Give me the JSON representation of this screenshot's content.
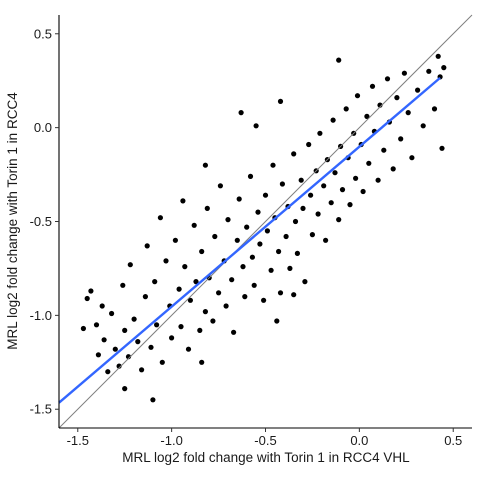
{
  "chart_data": {
    "type": "scatter",
    "title": "",
    "xlabel": "MRL log2 fold change with Torin 1 in RCC4 VHL",
    "ylabel": "MRL log2 fold change with Torin 1 in RCC4",
    "xlim": [
      -1.6,
      0.6
    ],
    "ylim": [
      -1.6,
      0.6
    ],
    "x_ticks": [
      -1.5,
      -1.0,
      -0.5,
      0.0,
      0.5
    ],
    "x_tick_labels": [
      "-1.5",
      "-1.0",
      "-0.5",
      "0.0",
      "0.5"
    ],
    "y_ticks": [
      -1.5,
      -1.0,
      -0.5,
      0.0,
      0.5
    ],
    "y_tick_labels": [
      "-1.5",
      "-1.0",
      "-0.5",
      "0.0",
      "0.5"
    ],
    "grid": false,
    "legend": "none",
    "point_color": "#000000",
    "identity_line": {
      "slope": 1,
      "intercept": 0,
      "color": "#7f7f7f"
    },
    "fit_line": {
      "x": [
        -1.6,
        0.43
      ],
      "y": [
        -1.465,
        0.265
      ],
      "color": "#3366ff"
    },
    "points": [
      [
        -1.47,
        -1.07
      ],
      [
        -1.45,
        -0.91
      ],
      [
        -1.43,
        -0.87
      ],
      [
        -1.4,
        -1.05
      ],
      [
        -1.39,
        -1.21
      ],
      [
        -1.37,
        -0.95
      ],
      [
        -1.36,
        -1.13
      ],
      [
        -1.34,
        -1.3
      ],
      [
        -1.32,
        -0.99
      ],
      [
        -1.3,
        -1.18
      ],
      [
        -1.28,
        -1.27
      ],
      [
        -1.26,
        -0.84
      ],
      [
        -1.25,
        -1.08
      ],
      [
        -1.23,
        -1.22
      ],
      [
        -1.22,
        -0.73
      ],
      [
        -1.2,
        -1.02
      ],
      [
        -1.18,
        -1.14
      ],
      [
        -1.16,
        -1.29
      ],
      [
        -1.14,
        -0.9
      ],
      [
        -1.13,
        -0.63
      ],
      [
        -1.11,
        -1.17
      ],
      [
        -1.09,
        -0.82
      ],
      [
        -1.08,
        -1.05
      ],
      [
        -1.06,
        -0.48
      ],
      [
        -1.05,
        -1.25
      ],
      [
        -1.03,
        -0.71
      ],
      [
        -1.01,
        -0.95
      ],
      [
        -1.0,
        -1.12
      ],
      [
        -0.98,
        -0.6
      ],
      [
        -0.96,
        -0.86
      ],
      [
        -0.95,
        -1.06
      ],
      [
        -0.94,
        -0.39
      ],
      [
        -0.93,
        -0.74
      ],
      [
        -0.91,
        -1.18
      ],
      [
        -0.9,
        -0.92
      ],
      [
        -0.88,
        -0.52
      ],
      [
        -0.87,
        -0.82
      ],
      [
        -0.85,
        -1.08
      ],
      [
        -0.84,
        -0.66
      ],
      [
        -0.82,
        -0.98
      ],
      [
        -0.81,
        -0.43
      ],
      [
        -0.8,
        -0.8
      ],
      [
        -0.78,
        -1.03
      ],
      [
        -0.77,
        -0.58
      ],
      [
        -0.75,
        -0.88
      ],
      [
        -0.74,
        -0.31
      ],
      [
        -0.72,
        -0.71
      ],
      [
        -0.71,
        -0.95
      ],
      [
        -0.7,
        -0.49
      ],
      [
        -0.68,
        -0.81
      ],
      [
        -0.67,
        -1.09
      ],
      [
        -0.65,
        -0.6
      ],
      [
        -0.64,
        -0.38
      ],
      [
        -0.62,
        -0.74
      ],
      [
        -0.61,
        -0.9
      ],
      [
        -0.6,
        -0.53
      ],
      [
        -0.58,
        -0.26
      ],
      [
        -0.57,
        -0.69
      ],
      [
        -0.56,
        -0.84
      ],
      [
        -0.54,
        -0.45
      ],
      [
        -0.53,
        -0.62
      ],
      [
        -0.51,
        -0.92
      ],
      [
        -0.5,
        -0.36
      ],
      [
        -0.49,
        -0.55
      ],
      [
        -0.47,
        -0.76
      ],
      [
        -0.46,
        -0.2
      ],
      [
        -0.45,
        -0.48
      ],
      [
        -0.43,
        -0.66
      ],
      [
        -0.42,
        -0.88
      ],
      [
        -0.41,
        -0.3
      ],
      [
        -0.39,
        -0.58
      ],
      [
        -0.38,
        -0.42
      ],
      [
        -0.37,
        -0.75
      ],
      [
        -0.35,
        -0.14
      ],
      [
        -0.34,
        -0.5
      ],
      [
        -0.33,
        -0.67
      ],
      [
        -0.31,
        -0.28
      ],
      [
        -0.3,
        -0.43
      ],
      [
        -0.29,
        -0.82
      ],
      [
        -0.27,
        -0.09
      ],
      [
        -0.26,
        -0.36
      ],
      [
        -0.25,
        -0.57
      ],
      [
        -0.23,
        -0.23
      ],
      [
        -0.22,
        -0.46
      ],
      [
        -0.21,
        -0.03
      ],
      [
        -0.19,
        -0.31
      ],
      [
        -0.18,
        -0.6
      ],
      [
        -0.17,
        -0.17
      ],
      [
        -0.15,
        -0.4
      ],
      [
        -0.14,
        0.04
      ],
      [
        -0.13,
        -0.24
      ],
      [
        -0.11,
        -0.49
      ],
      [
        -0.1,
        -0.1
      ],
      [
        -0.09,
        -0.33
      ],
      [
        -0.07,
        0.1
      ],
      [
        -0.06,
        -0.16
      ],
      [
        -0.05,
        -0.41
      ],
      [
        -0.03,
        -0.03
      ],
      [
        -0.02,
        -0.27
      ],
      [
        -0.01,
        0.17
      ],
      [
        0.01,
        -0.09
      ],
      [
        0.02,
        -0.34
      ],
      [
        0.04,
        0.06
      ],
      [
        0.05,
        -0.19
      ],
      [
        0.07,
        0.22
      ],
      [
        0.08,
        -0.02
      ],
      [
        0.1,
        -0.28
      ],
      [
        0.11,
        0.12
      ],
      [
        0.13,
        -0.12
      ],
      [
        0.15,
        0.26
      ],
      [
        0.16,
        0.03
      ],
      [
        0.18,
        -0.22
      ],
      [
        0.2,
        0.16
      ],
      [
        0.22,
        -0.06
      ],
      [
        0.24,
        0.29
      ],
      [
        0.26,
        0.08
      ],
      [
        0.28,
        -0.16
      ],
      [
        0.31,
        0.2
      ],
      [
        0.34,
        0.01
      ],
      [
        0.37,
        0.3
      ],
      [
        0.4,
        0.1
      ],
      [
        0.42,
        0.38
      ],
      [
        0.43,
        0.27
      ],
      [
        0.44,
        -0.11
      ],
      [
        0.45,
        0.32
      ],
      [
        -0.82,
        -0.2
      ],
      [
        -0.63,
        0.08
      ],
      [
        -0.55,
        0.01
      ],
      [
        -0.42,
        0.14
      ],
      [
        -0.11,
        0.36
      ],
      [
        -1.25,
        -1.39
      ],
      [
        -1.1,
        -1.45
      ],
      [
        -0.84,
        -1.25
      ],
      [
        -0.44,
        -1.03
      ],
      [
        -0.35,
        -0.89
      ]
    ]
  }
}
